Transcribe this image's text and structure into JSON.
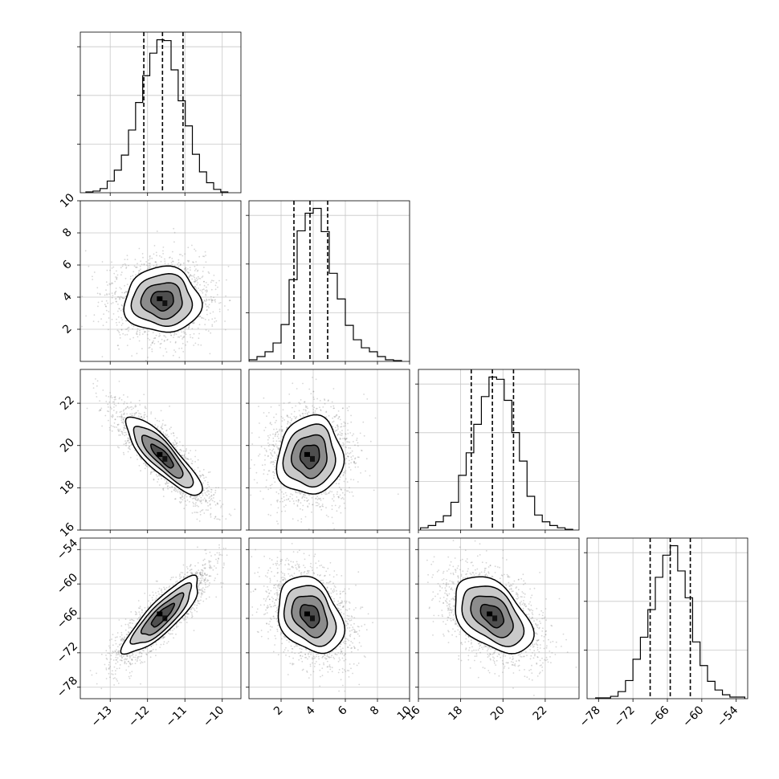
{
  "chart_data": {
    "type": "corner",
    "title": "",
    "parameters": [
      {
        "range": [
          -13.8,
          -9.5
        ],
        "ticks": [
          -13,
          -12,
          -11,
          -10
        ],
        "tick_labels": [
          "−13",
          "−12",
          "−11",
          "−10"
        ]
      },
      {
        "range": [
          0,
          10
        ],
        "ticks": [
          2,
          4,
          6,
          8,
          10
        ],
        "tick_labels": [
          "2",
          "4",
          "6",
          "8",
          "10"
        ]
      },
      {
        "range": [
          16,
          23.6
        ],
        "ticks": [
          16,
          18,
          20,
          22
        ],
        "tick_labels": [
          "16",
          "18",
          "20",
          "22"
        ]
      },
      {
        "range": [
          -80,
          -52
        ],
        "ticks": [
          -78,
          -72,
          -66,
          -60,
          -54
        ],
        "tick_labels": [
          "−78",
          "−72",
          "−66",
          "−60",
          "−54"
        ]
      }
    ],
    "quantiles": [
      [
        -12.1,
        -11.6,
        -11.05
      ],
      [
        2.8,
        3.8,
        4.9
      ],
      [
        18.5,
        19.5,
        20.5
      ],
      [
        -69,
        -65.5,
        -62
      ]
    ],
    "histograms": [
      {
        "bin_edges": [
          -13.65,
          -13.46,
          -13.27,
          -13.08,
          -12.89,
          -12.7,
          -12.51,
          -12.32,
          -12.13,
          -11.94,
          -11.75,
          -11.56,
          -11.37,
          -11.18,
          -10.99,
          -10.8,
          -10.61,
          -10.42,
          -10.23,
          -10.04,
          -9.85
        ],
        "counts": [
          1,
          2,
          5,
          14,
          27,
          45,
          75,
          108,
          140,
          167,
          183,
          182,
          147,
          110,
          80,
          46,
          25,
          12,
          4,
          1
        ]
      },
      {
        "bin_edges": [
          0,
          0.5,
          1,
          1.5,
          2,
          2.5,
          3,
          3.5,
          4,
          4.5,
          5,
          5.5,
          6,
          6.5,
          7,
          7.5,
          8,
          8.5,
          9,
          9.5
        ],
        "counts": [
          2,
          6,
          12,
          23,
          46,
          102,
          163,
          185,
          191,
          162,
          110,
          78,
          45,
          27,
          17,
          12,
          6,
          2,
          1
        ]
      },
      {
        "bin_edges": [
          16.1,
          16.46,
          16.82,
          17.18,
          17.54,
          17.9,
          18.26,
          18.62,
          18.98,
          19.34,
          19.7,
          20.06,
          20.42,
          20.78,
          21.14,
          21.5,
          21.86,
          22.22,
          22.58,
          22.94,
          23.3
        ],
        "counts": [
          3,
          6,
          11,
          19,
          37,
          73,
          103,
          141,
          178,
          204,
          201,
          173,
          130,
          92,
          45,
          20,
          11,
          6,
          3,
          1
        ]
      },
      {
        "bin_edges": [
          -78.5,
          -77.2,
          -75.9,
          -74.6,
          -73.3,
          -72,
          -70.7,
          -69.4,
          -68.1,
          -66.8,
          -65.5,
          -64.2,
          -62.9,
          -61.6,
          -60.3,
          -59,
          -57.7,
          -56.4,
          -55.1,
          -53.8,
          -52.5
        ],
        "counts": [
          1,
          1,
          3,
          9,
          23,
          50,
          78,
          113,
          154,
          182,
          194,
          162,
          128,
          72,
          42,
          22,
          11,
          5,
          2,
          2
        ]
      }
    ],
    "pairs": [
      {
        "x_param": 0,
        "y_param": 1,
        "center": [
          -11.6,
          3.8
        ],
        "sd": [
          0.55,
          1.1
        ],
        "corr": 0.0,
        "contour_scales": [
          0.55,
          1.0,
          1.45,
          1.85
        ],
        "n_points": 2000
      },
      {
        "x_param": 0,
        "y_param": 2,
        "center": [
          -11.6,
          19.5
        ],
        "sd": [
          0.55,
          1.0
        ],
        "corr": -0.85,
        "contour_scales": [
          0.55,
          1.0,
          1.45,
          1.85
        ],
        "n_points": 2000
      },
      {
        "x_param": 1,
        "y_param": 2,
        "center": [
          3.8,
          19.5
        ],
        "sd": [
          1.1,
          1.0
        ],
        "corr": 0.05,
        "contour_scales": [
          0.55,
          1.0,
          1.45,
          1.85
        ],
        "n_points": 2000
      },
      {
        "x_param": 0,
        "y_param": 3,
        "center": [
          -11.6,
          -65.5
        ],
        "sd": [
          0.55,
          3.6
        ],
        "corr": 0.85,
        "contour_scales": [
          0.55,
          1.0,
          1.45,
          1.85
        ],
        "n_points": 2000
      },
      {
        "x_param": 1,
        "y_param": 3,
        "center": [
          3.8,
          -65.5
        ],
        "sd": [
          1.1,
          3.6
        ],
        "corr": -0.3,
        "contour_scales": [
          0.55,
          1.0,
          1.45,
          1.85
        ],
        "n_points": 2000
      },
      {
        "x_param": 2,
        "y_param": 3,
        "center": [
          19.5,
          -65.5
        ],
        "sd": [
          1.0,
          3.6
        ],
        "corr": -0.45,
        "contour_scales": [
          0.55,
          1.0,
          1.45,
          1.85
        ],
        "n_points": 2000
      }
    ],
    "grid": true,
    "colors": {
      "points": "#8a8a8a",
      "contour": "#000000",
      "fill_dark": "#3a3a3a",
      "fill_light": "#ffffff",
      "frame": "#000000",
      "grid": "#c8c8c8"
    },
    "quantile_line_style": "dashed"
  }
}
